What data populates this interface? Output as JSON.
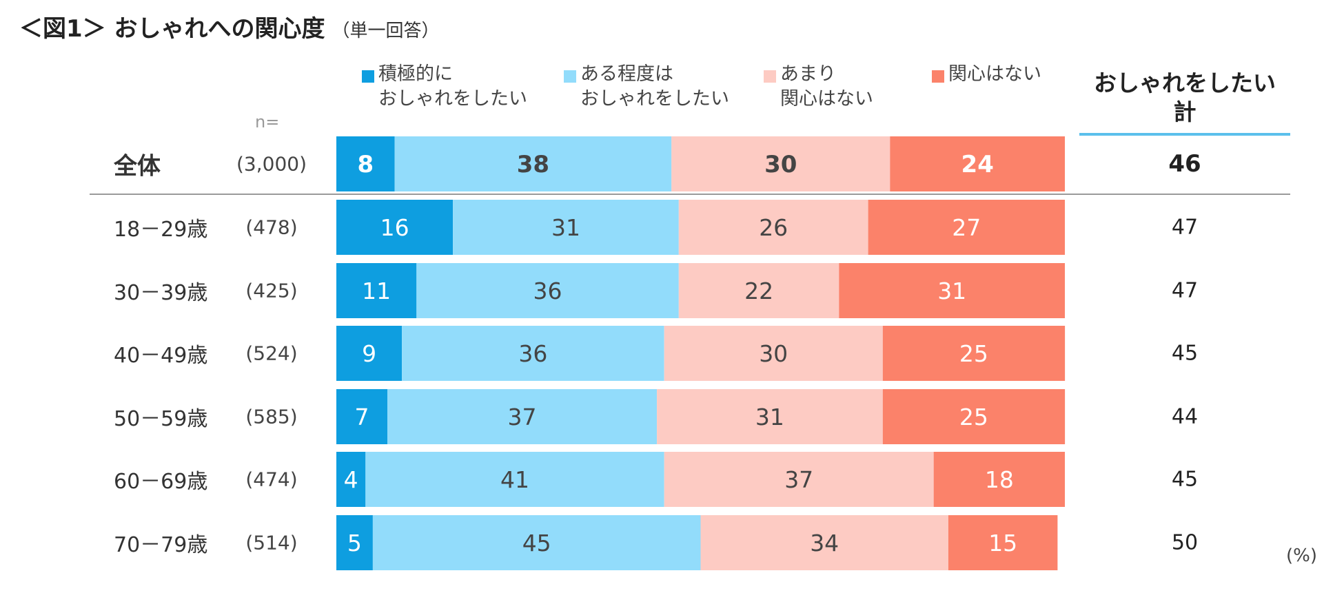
{
  "title": "＜図1＞ おしゃれへの関心度",
  "subtitle": "（単一回答）",
  "n_label": "n=",
  "unit_label": "(%)",
  "total_header": "おしゃれをしたい計",
  "total_header_lines": [
    "おしゃれをしたい",
    "計"
  ],
  "legend": [
    {
      "lines": [
        "積極的に",
        "おしゃれをしたい"
      ],
      "color": "#0e9ee0"
    },
    {
      "lines": [
        "ある程度は",
        "おしゃれをしたい"
      ],
      "color": "#92dcfb"
    },
    {
      "lines": [
        "あまり",
        "関心はない"
      ],
      "color": "#fdcbc3"
    },
    {
      "lines": [
        "関心はない"
      ],
      "color": "#fb826a"
    }
  ],
  "rows": [
    {
      "label": "全体",
      "n": "(3,000)",
      "total": "46"
    },
    {
      "label": "18－29歳",
      "n": "(478)",
      "total": "47"
    },
    {
      "label": "30－39歳",
      "n": "(425)",
      "total": "47"
    },
    {
      "label": "40－49歳",
      "n": "(524)",
      "total": "45"
    },
    {
      "label": "50－59歳",
      "n": "(585)",
      "total": "44"
    },
    {
      "label": "60－69歳",
      "n": "(474)",
      "total": "45"
    },
    {
      "label": "70－79歳",
      "n": "(514)",
      "total": "50"
    }
  ],
  "chart_data": {
    "type": "bar",
    "orientation": "horizontal",
    "stacked": true,
    "normalized": true,
    "title": "＜図1＞ おしゃれへの関心度（単一回答）",
    "xlabel": "",
    "ylabel": "",
    "unit": "%",
    "categories": [
      "全体",
      "18－29歳",
      "30－39歳",
      "40－49歳",
      "50－59歳",
      "60－69歳",
      "70－79歳"
    ],
    "series": [
      {
        "name": "積極的におしゃれをしたい",
        "color": "#0e9ee0",
        "values": [
          8,
          16,
          11,
          9,
          7,
          4,
          5
        ]
      },
      {
        "name": "ある程度はおしゃれをしたい",
        "color": "#92dcfb",
        "values": [
          38,
          31,
          36,
          36,
          37,
          41,
          45
        ]
      },
      {
        "name": "あまり関心はない",
        "color": "#fdcbc3",
        "values": [
          30,
          26,
          22,
          30,
          31,
          37,
          34
        ]
      },
      {
        "name": "関心はない",
        "color": "#fb826a",
        "values": [
          24,
          27,
          31,
          25,
          25,
          18,
          15
        ]
      }
    ],
    "totals": {
      "name": "おしゃれをしたい計",
      "values": [
        46,
        47,
        47,
        45,
        44,
        45,
        50
      ]
    },
    "sample_sizes": [
      3000,
      478,
      425,
      524,
      585,
      474,
      514
    ],
    "xlim": [
      0,
      100
    ]
  }
}
